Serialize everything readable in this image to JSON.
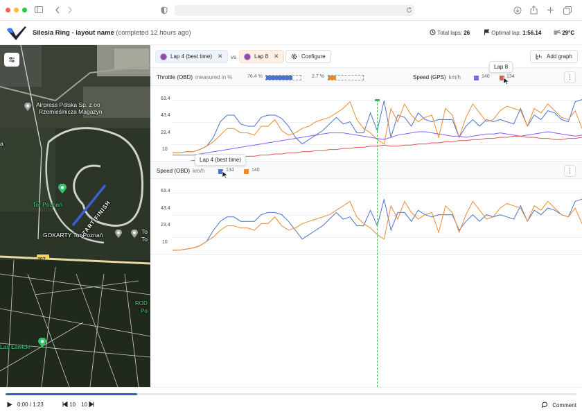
{
  "app": {
    "track_name": "Silesia Ring - layout name",
    "completed": "(completed 12 hours ago)",
    "total_laps_label": "Total laps:",
    "total_laps": "26",
    "optimal_lap_label": "Optimal lap:",
    "optimal_lap": "1:56.14",
    "weather": "29°C"
  },
  "map": {
    "labels": {
      "airpress": "Airpress Polska Sp. z oo",
      "rzemieslnicza": "Rzemieślnicza Magazyn",
      "tor_poznan": "Tor Poznań",
      "gokarty": "GOKARTY Tor Poznań",
      "to": "To",
      "to2": "To",
      "road": "307",
      "rod": "ROD",
      "po": "Po",
      "las": "Las Ławicki",
      "start_finish": "START/FINISH",
      "a": "a"
    }
  },
  "tabs": {
    "lap_a": "Lap 4 (best time)",
    "vs": "vs",
    "lap_b": "Lap 8",
    "configure": "Configure",
    "add_graph": "Add graph"
  },
  "panel1": {
    "title": "Throttle (OBD)",
    "unit": "measured in %",
    "lap_a_value": "76.4 %",
    "lap_a_fill": 0.76,
    "lap_b_value": "2.7 %",
    "lap_b_fill": 0.22,
    "title2": "Speed (GPS)",
    "unit2": "km/h",
    "val2a": "140",
    "val2b": "134",
    "tooltip": "Lap 8"
  },
  "panel2": {
    "title": "Speed (OBD)",
    "unit": "km/h",
    "val_a": "134",
    "val_b": "140",
    "tooltip": "Lap 4 (best time)"
  },
  "colors": {
    "lap_a": "#4a74c9",
    "lap_b": "#ec8a32",
    "gps_a": "#8b5cf6",
    "gps_b": "#e05555",
    "cursor": "#3fb950"
  },
  "chart_data": [
    {
      "type": "line",
      "title": "Throttle (OBD)",
      "y_ticks": [
        "63.4",
        "43.4",
        "23.4",
        "10"
      ],
      "ylim": [
        10,
        70
      ],
      "x": [
        0,
        1,
        2,
        3,
        4,
        5,
        6,
        7,
        8,
        9,
        10,
        11,
        12,
        13,
        14,
        15,
        16,
        17,
        18,
        19,
        20,
        21,
        22,
        23,
        24,
        25,
        26,
        27,
        28,
        29,
        30,
        31,
        32,
        33,
        34,
        35,
        36,
        37,
        38,
        39,
        40,
        41,
        42,
        43,
        44,
        45,
        46,
        47,
        48,
        49,
        50,
        51,
        52,
        53,
        54,
        55,
        56,
        57,
        58,
        59,
        60
      ],
      "series": [
        {
          "name": "Lap 4 (best time)",
          "values": [
            16,
            16,
            17,
            17,
            19,
            22,
            30,
            44,
            50,
            50,
            42,
            40,
            40,
            48,
            50,
            50,
            47,
            40,
            30,
            24,
            28,
            32,
            36,
            42,
            48,
            42,
            44,
            34,
            34,
            52,
            36,
            63,
            30,
            50,
            48,
            40,
            52,
            46,
            44,
            46,
            46,
            46,
            30,
            40,
            46,
            40,
            46,
            44,
            46,
            44,
            42,
            56,
            40,
            50,
            46,
            54,
            52,
            46,
            44,
            62,
            64
          ]
        },
        {
          "name": "Lap 8",
          "values": [
            16,
            16,
            17,
            17,
            19,
            22,
            26,
            32,
            38,
            38,
            34,
            34,
            32,
            40,
            40,
            46,
            36,
            32,
            34,
            38,
            40,
            44,
            46,
            48,
            52,
            56,
            62,
            46,
            38,
            34,
            28,
            24,
            56,
            44,
            60,
            50,
            44,
            48,
            50,
            30,
            56,
            50,
            30,
            48,
            60,
            52,
            44,
            46,
            54,
            58,
            56,
            54,
            40,
            56,
            52,
            60,
            54,
            48,
            46,
            54,
            38
          ]
        },
        {
          "name": "Speed (GPS) Lap 4",
          "values": [
            14,
            14,
            14,
            14,
            15,
            16,
            17,
            18,
            19,
            20,
            21,
            22,
            23,
            24,
            25,
            26,
            27,
            28,
            29,
            30,
            31,
            32,
            33,
            34,
            34,
            34,
            33,
            32,
            31,
            30,
            29,
            28,
            30,
            32,
            33,
            34,
            35,
            35,
            34,
            33,
            32,
            31,
            31,
            30,
            31,
            32,
            33,
            33,
            34,
            33,
            32,
            31,
            32,
            33,
            34,
            35,
            34,
            33,
            32,
            31,
            32
          ]
        },
        {
          "name": "Speed (GPS) Lap 8",
          "values": [
            8,
            8,
            8,
            9,
            9,
            10,
            10,
            11,
            11,
            12,
            12,
            13,
            13,
            14,
            14,
            15,
            15,
            16,
            16,
            17,
            17,
            18,
            18,
            19,
            19,
            20,
            20,
            21,
            21,
            22,
            22,
            23,
            22,
            22,
            23,
            23,
            24,
            24,
            25,
            25,
            26,
            26,
            27,
            27,
            28,
            28,
            29,
            29,
            30,
            30,
            31,
            31,
            30,
            30,
            29,
            29,
            28,
            28,
            29,
            29,
            30
          ]
        }
      ]
    },
    {
      "type": "line",
      "title": "Speed (OBD)",
      "y_ticks": [
        "63.4",
        "43.4",
        "23.4",
        "10"
      ],
      "ylim": [
        10,
        70
      ],
      "x": [
        0,
        1,
        2,
        3,
        4,
        5,
        6,
        7,
        8,
        9,
        10,
        11,
        12,
        13,
        14,
        15,
        16,
        17,
        18,
        19,
        20,
        21,
        22,
        23,
        24,
        25,
        26,
        27,
        28,
        29,
        30,
        31,
        32,
        33,
        34,
        35,
        36,
        37,
        38,
        39,
        40,
        41,
        42,
        43,
        44,
        45,
        46,
        47,
        48,
        49,
        50,
        51,
        52,
        53,
        54,
        55,
        56,
        57,
        58,
        59,
        60
      ],
      "series": [
        {
          "name": "Lap 4 (best time)",
          "values": [
            12,
            12,
            13,
            14,
            16,
            20,
            30,
            38,
            42,
            42,
            38,
            38,
            38,
            44,
            46,
            46,
            44,
            38,
            30,
            22,
            26,
            30,
            34,
            40,
            46,
            40,
            42,
            34,
            34,
            48,
            34,
            58,
            30,
            46,
            46,
            38,
            48,
            44,
            42,
            44,
            44,
            44,
            30,
            38,
            44,
            38,
            44,
            42,
            44,
            42,
            40,
            52,
            38,
            48,
            44,
            50,
            48,
            44,
            42,
            56,
            58
          ]
        },
        {
          "name": "Lap 8",
          "values": [
            12,
            12,
            13,
            14,
            16,
            20,
            24,
            30,
            34,
            34,
            32,
            32,
            30,
            36,
            36,
            42,
            34,
            30,
            32,
            36,
            38,
            40,
            42,
            44,
            48,
            52,
            56,
            42,
            36,
            32,
            26,
            22,
            52,
            40,
            56,
            46,
            40,
            44,
            46,
            28,
            52,
            46,
            28,
            44,
            56,
            48,
            40,
            42,
            50,
            54,
            52,
            50,
            38,
            52,
            48,
            56,
            50,
            44,
            42,
            50,
            36
          ]
        }
      ]
    }
  ],
  "player": {
    "time": "0:00 / 1:23",
    "back": "10",
    "fwd": "10",
    "comment": "Comment",
    "progress": 0.23
  }
}
